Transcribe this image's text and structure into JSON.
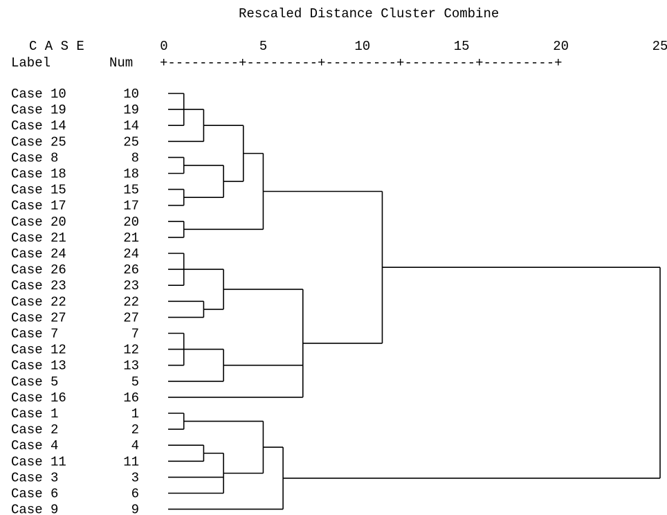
{
  "chart_data": {
    "type": "dendrogram",
    "title": "Rescaled Distance Cluster Combine",
    "case_header": "C A S E",
    "label_header": "Label",
    "num_header": "Num",
    "axis": {
      "ticks": [
        "0",
        "5",
        "10",
        "15",
        "20",
        "25"
      ],
      "range": [
        0,
        25
      ],
      "ruler": "+---------+---------+---------+---------+---------+"
    },
    "cases": [
      {
        "label": "Case 10",
        "num": "10"
      },
      {
        "label": "Case 19",
        "num": "19"
      },
      {
        "label": "Case 14",
        "num": "14"
      },
      {
        "label": "Case 25",
        "num": "25"
      },
      {
        "label": "Case 8",
        "num": "8"
      },
      {
        "label": "Case 18",
        "num": "18"
      },
      {
        "label": "Case 15",
        "num": "15"
      },
      {
        "label": "Case 17",
        "num": "17"
      },
      {
        "label": "Case 20",
        "num": "20"
      },
      {
        "label": "Case 21",
        "num": "21"
      },
      {
        "label": "Case 24",
        "num": "24"
      },
      {
        "label": "Case 26",
        "num": "26"
      },
      {
        "label": "Case 23",
        "num": "23"
      },
      {
        "label": "Case 22",
        "num": "22"
      },
      {
        "label": "Case 27",
        "num": "27"
      },
      {
        "label": "Case 7",
        "num": "7"
      },
      {
        "label": "Case 12",
        "num": "12"
      },
      {
        "label": "Case 13",
        "num": "13"
      },
      {
        "label": "Case 5",
        "num": "5"
      },
      {
        "label": "Case 16",
        "num": "16"
      },
      {
        "label": "Case 1",
        "num": "1"
      },
      {
        "label": "Case 2",
        "num": "2"
      },
      {
        "label": "Case 4",
        "num": "4"
      },
      {
        "label": "Case 11",
        "num": "11"
      },
      {
        "label": "Case 3",
        "num": "3"
      },
      {
        "label": "Case 6",
        "num": "6"
      },
      {
        "label": "Case 9",
        "num": "9"
      }
    ],
    "merges": [
      {
        "id": "m1",
        "children": [
          "c:Case 10",
          "c:Case 19",
          "c:Case 14"
        ],
        "distance": 1.0
      },
      {
        "id": "m2",
        "children": [
          "m1",
          "c:Case 25"
        ],
        "distance": 2.0
      },
      {
        "id": "m3",
        "children": [
          "c:Case 8",
          "c:Case 18"
        ],
        "distance": 1.0
      },
      {
        "id": "m4",
        "children": [
          "c:Case 15",
          "c:Case 17"
        ],
        "distance": 1.0
      },
      {
        "id": "m5",
        "children": [
          "m3",
          "m4"
        ],
        "distance": 3.0
      },
      {
        "id": "m6",
        "children": [
          "m2",
          "m5"
        ],
        "distance": 4.0
      },
      {
        "id": "m7",
        "children": [
          "c:Case 20",
          "c:Case 21"
        ],
        "distance": 1.0
      },
      {
        "id": "m8",
        "children": [
          "m6",
          "m7"
        ],
        "distance": 5.0
      },
      {
        "id": "m9",
        "children": [
          "c:Case 24",
          "c:Case 26",
          "c:Case 23"
        ],
        "distance": 1.0
      },
      {
        "id": "m10",
        "children": [
          "c:Case 22",
          "c:Case 27"
        ],
        "distance": 2.0
      },
      {
        "id": "m11",
        "children": [
          "m9",
          "m10"
        ],
        "distance": 3.0
      },
      {
        "id": "m12",
        "children": [
          "c:Case 7",
          "c:Case 12",
          "c:Case 13"
        ],
        "distance": 1.0
      },
      {
        "id": "m13",
        "children": [
          "m12",
          "c:Case 5"
        ],
        "distance": 3.0
      },
      {
        "id": "m14",
        "children": [
          "m11",
          "m13",
          "c:Case 16"
        ],
        "distance": 7.0
      },
      {
        "id": "m15",
        "children": [
          "m8",
          "m14"
        ],
        "distance": 11.0
      },
      {
        "id": "m16",
        "children": [
          "c:Case 1",
          "c:Case 2"
        ],
        "distance": 1.0
      },
      {
        "id": "m17",
        "children": [
          "c:Case 4",
          "c:Case 11"
        ],
        "distance": 2.0
      },
      {
        "id": "m18",
        "children": [
          "m17",
          "c:Case 3",
          "c:Case 6"
        ],
        "distance": 3.0
      },
      {
        "id": "m19",
        "children": [
          "m16",
          "m18"
        ],
        "distance": 5.0
      },
      {
        "id": "m20",
        "children": [
          "m19",
          "c:Case 9"
        ],
        "distance": 6.0
      },
      {
        "id": "m21",
        "children": [
          "m15",
          "m20"
        ],
        "distance": 25.0
      }
    ]
  }
}
